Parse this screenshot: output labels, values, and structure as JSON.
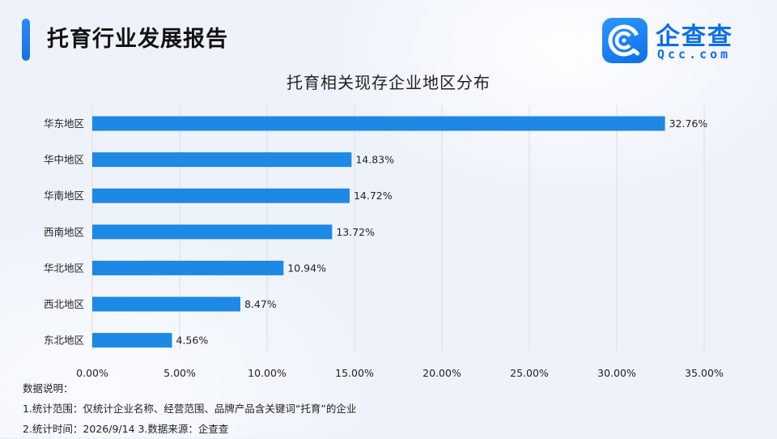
{
  "header": {
    "title": "托育行业发展报告"
  },
  "logo": {
    "cn": "企查查",
    "en": "Qcc.com"
  },
  "chart_data": {
    "type": "bar",
    "orientation": "horizontal",
    "title": "托育相关现存企业地区分布",
    "categories": [
      "华东地区",
      "华中地区",
      "华南地区",
      "西南地区",
      "华北地区",
      "西北地区",
      "东北地区"
    ],
    "values": [
      32.76,
      14.83,
      14.72,
      13.72,
      10.94,
      8.47,
      4.56
    ],
    "value_labels": [
      "32.76%",
      "14.83%",
      "14.72%",
      "13.72%",
      "10.94%",
      "8.47%",
      "4.56%"
    ],
    "xlim": [
      0,
      35
    ],
    "xticks": [
      0,
      5,
      10,
      15,
      20,
      25,
      30,
      35
    ],
    "xtick_labels": [
      "0.00%",
      "5.00%",
      "10.00%",
      "15.00%",
      "20.00%",
      "25.00%",
      "30.00%",
      "35.00%"
    ],
    "grid": "vertical",
    "bar_color": "#1e88e5"
  },
  "notes": {
    "heading": "数据说明：",
    "line1": "1.统计范围：仅统计企业名称、经营范围、品牌产品含关键词“托育”的企业",
    "line2": "2.统计时间：2026/9/14  3.数据来源：企查查"
  }
}
